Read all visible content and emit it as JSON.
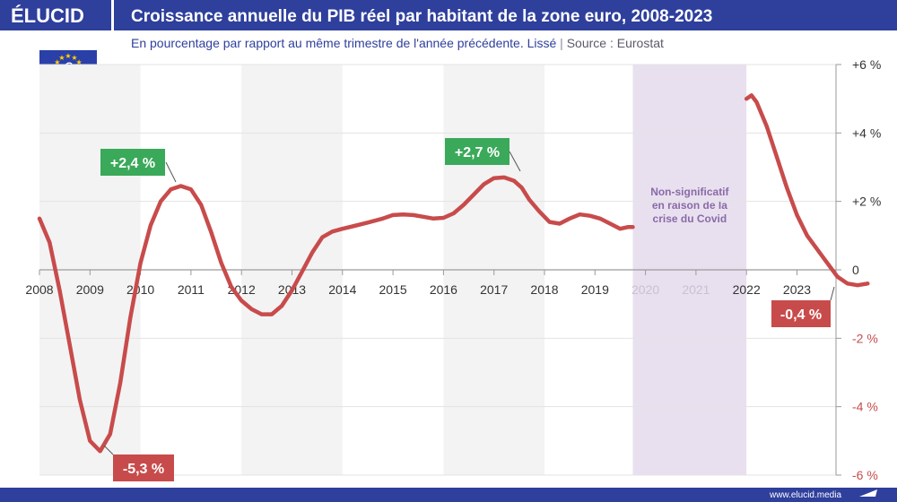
{
  "brand": {
    "logo": "ÉLUCID",
    "website": "www.elucid.media"
  },
  "header": {
    "title": "Croissance annuelle du PIB réel par habitant de la zone euro, 2008-2023",
    "subtitle": "En pourcentage par rapport au même trimestre de l'année précédente. Lissé",
    "source": "Source : Eurostat"
  },
  "colors": {
    "brand_blue": "#2e3f9c",
    "line": "#c84b4b",
    "positive_label": "#3aa95a",
    "negative_label": "#c84b4b",
    "covid_band": "#e8e0ef",
    "covid_text": "#8a6aa8",
    "alt_band": "#f3f3f3"
  },
  "chart_data": {
    "type": "line",
    "title": "Croissance annuelle du PIB réel par habitant de la zone euro, 2008-2023",
    "xlabel": "",
    "ylabel": "",
    "xlim": [
      2008,
      2024.6
    ],
    "ylim": [
      -6,
      6
    ],
    "grid": true,
    "x_ticks": [
      "2008",
      "2009",
      "2010",
      "2011",
      "2012",
      "2013",
      "2014",
      "2015",
      "2016",
      "2017",
      "2018",
      "2019",
      "2020",
      "2021",
      "2022",
      "2023"
    ],
    "y_ticks": [
      {
        "value": 6,
        "label": "+6 %"
      },
      {
        "value": 4,
        "label": "+4 %"
      },
      {
        "value": 2,
        "label": "+2 %"
      },
      {
        "value": 0,
        "label": "0"
      },
      {
        "value": -2,
        "label": "-2 %"
      },
      {
        "value": -4,
        "label": "-4 %"
      },
      {
        "value": -6,
        "label": "-6 %"
      }
    ],
    "covid_band": {
      "from": 2019.75,
      "to": 2022.0,
      "label": "Non-significatif en raison de la crise du Covid"
    },
    "series": [
      {
        "segment": "2008-2019",
        "x": [
          2008.0,
          2008.2,
          2008.4,
          2008.6,
          2008.8,
          2009.0,
          2009.2,
          2009.4,
          2009.6,
          2009.8,
          2010.0,
          2010.2,
          2010.4,
          2010.6,
          2010.8,
          2011.0,
          2011.2,
          2011.4,
          2011.6,
          2011.8,
          2012.0,
          2012.2,
          2012.4,
          2012.6,
          2012.8,
          2013.0,
          2013.2,
          2013.4,
          2013.6,
          2013.8,
          2014.0,
          2014.2,
          2014.5,
          2014.8,
          2015.0,
          2015.2,
          2015.4,
          2015.6,
          2015.8,
          2016.0,
          2016.2,
          2016.4,
          2016.6,
          2016.8,
          2017.0,
          2017.2,
          2017.4,
          2017.55,
          2017.7,
          2017.9,
          2018.1,
          2018.3,
          2018.5,
          2018.7,
          2018.9,
          2019.1,
          2019.3,
          2019.5,
          2019.65,
          2019.75
        ],
        "y": [
          1.5,
          0.8,
          -0.6,
          -2.2,
          -3.8,
          -5.0,
          -5.3,
          -4.8,
          -3.3,
          -1.4,
          0.2,
          1.3,
          2.0,
          2.35,
          2.45,
          2.35,
          1.9,
          1.1,
          0.2,
          -0.5,
          -0.9,
          -1.15,
          -1.3,
          -1.3,
          -1.05,
          -0.6,
          -0.05,
          0.5,
          0.95,
          1.12,
          1.2,
          1.27,
          1.38,
          1.5,
          1.6,
          1.62,
          1.6,
          1.55,
          1.5,
          1.52,
          1.65,
          1.9,
          2.2,
          2.5,
          2.68,
          2.7,
          2.6,
          2.4,
          2.05,
          1.7,
          1.4,
          1.35,
          1.5,
          1.62,
          1.58,
          1.5,
          1.35,
          1.2,
          1.25,
          1.25
        ]
      },
      {
        "segment": "2022-2023",
        "x": [
          2022.0,
          2022.1,
          2022.2,
          2022.4,
          2022.6,
          2022.8,
          2023.0,
          2023.2,
          2023.4,
          2023.6,
          2023.8,
          2024.0,
          2024.2,
          2024.4
        ],
        "y": [
          5.0,
          5.1,
          4.9,
          4.2,
          3.3,
          2.4,
          1.6,
          1.0,
          0.6,
          0.2,
          -0.2,
          -0.4,
          -0.45,
          -0.4
        ]
      }
    ],
    "annotations": [
      {
        "label": "+2,4 %",
        "x": 2010.8,
        "y": 2.4,
        "kind": "positive"
      },
      {
        "label": "-5,3 %",
        "x": 2009.2,
        "y": -5.3,
        "kind": "negative"
      },
      {
        "label": "+2,7 %",
        "x": 2017.5,
        "y": 2.7,
        "kind": "positive"
      },
      {
        "label": "-0,4 %",
        "x": 2024.4,
        "y": -0.4,
        "kind": "negative"
      }
    ]
  }
}
